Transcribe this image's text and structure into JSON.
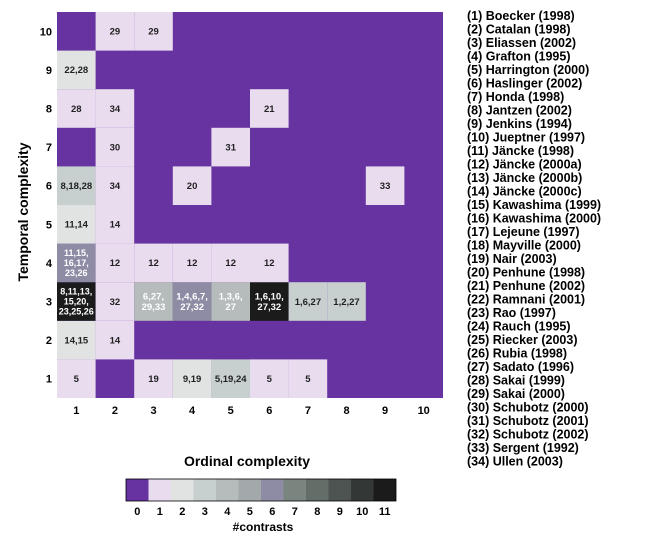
{
  "chart_data": {
    "type": "heatmap",
    "title": "",
    "xlabel": "Ordinal complexity",
    "ylabel": "Temporal complexity",
    "x_categories": [
      "1",
      "2",
      "3",
      "4",
      "5",
      "6",
      "7",
      "8",
      "9",
      "10"
    ],
    "y_categories": [
      "1",
      "2",
      "3",
      "4",
      "5",
      "6",
      "7",
      "8",
      "9",
      "10"
    ],
    "colorbar": {
      "label": "#contrasts",
      "ticks": [
        "0",
        "1",
        "2",
        "3",
        "4",
        "5",
        "6",
        "7",
        "8",
        "9",
        "10",
        "11"
      ],
      "colors": [
        "#6633a0",
        "#e9dcef",
        "#e0e3e2",
        "#c8cfcf",
        "#b6bcbc",
        "#a3a8aa",
        "#8e8ba4",
        "#7b8580",
        "#646e69",
        "#4d5451",
        "#333735",
        "#1c1b1c"
      ]
    },
    "cells": [
      {
        "x": 1,
        "y": 1,
        "count": 1,
        "label": "5"
      },
      {
        "x": 3,
        "y": 1,
        "count": 1,
        "label": "19"
      },
      {
        "x": 4,
        "y": 1,
        "count": 2,
        "label": "9,19"
      },
      {
        "x": 5,
        "y": 1,
        "count": 3,
        "label": "5,19,24"
      },
      {
        "x": 6,
        "y": 1,
        "count": 1,
        "label": "5"
      },
      {
        "x": 7,
        "y": 1,
        "count": 1,
        "label": "5"
      },
      {
        "x": 1,
        "y": 2,
        "count": 2,
        "label": "14,15"
      },
      {
        "x": 2,
        "y": 2,
        "count": 1,
        "label": "14"
      },
      {
        "x": 1,
        "y": 3,
        "count": 11,
        "label": "8,11,13,15,20,23,25,26"
      },
      {
        "x": 2,
        "y": 3,
        "count": 1,
        "label": "32"
      },
      {
        "x": 3,
        "y": 3,
        "count": 4,
        "label": "6,27,29,33"
      },
      {
        "x": 4,
        "y": 3,
        "count": 6,
        "label": "1,4,6,7,27,32"
      },
      {
        "x": 5,
        "y": 3,
        "count": 4,
        "label": "1,3,6,27"
      },
      {
        "x": 6,
        "y": 3,
        "count": 11,
        "label": "1,6,10,27,32"
      },
      {
        "x": 7,
        "y": 3,
        "count": 3,
        "label": "1,6,27"
      },
      {
        "x": 8,
        "y": 3,
        "count": 3,
        "label": "1,2,27"
      },
      {
        "x": 1,
        "y": 4,
        "count": 6,
        "label": "11,15,16,17,23,26"
      },
      {
        "x": 2,
        "y": 4,
        "count": 1,
        "label": "12"
      },
      {
        "x": 3,
        "y": 4,
        "count": 1,
        "label": "12"
      },
      {
        "x": 4,
        "y": 4,
        "count": 1,
        "label": "12"
      },
      {
        "x": 5,
        "y": 4,
        "count": 1,
        "label": "12"
      },
      {
        "x": 6,
        "y": 4,
        "count": 1,
        "label": "12"
      },
      {
        "x": 1,
        "y": 5,
        "count": 2,
        "label": "11,14"
      },
      {
        "x": 2,
        "y": 5,
        "count": 1,
        "label": "14"
      },
      {
        "x": 1,
        "y": 6,
        "count": 3,
        "label": "8,18,28"
      },
      {
        "x": 2,
        "y": 6,
        "count": 1,
        "label": "34"
      },
      {
        "x": 4,
        "y": 6,
        "count": 1,
        "label": "20"
      },
      {
        "x": 9,
        "y": 6,
        "count": 1,
        "label": "33"
      },
      {
        "x": 2,
        "y": 7,
        "count": 1,
        "label": "30"
      },
      {
        "x": 5,
        "y": 7,
        "count": 1,
        "label": "31"
      },
      {
        "x": 1,
        "y": 8,
        "count": 1,
        "label": "28"
      },
      {
        "x": 2,
        "y": 8,
        "count": 1,
        "label": "34"
      },
      {
        "x": 6,
        "y": 8,
        "count": 1,
        "label": "21"
      },
      {
        "x": 1,
        "y": 9,
        "count": 2,
        "label": "22,28"
      },
      {
        "x": 2,
        "y": 10,
        "count": 1,
        "label": "29"
      },
      {
        "x": 3,
        "y": 10,
        "count": 1,
        "label": "29"
      }
    ],
    "references": [
      "(1) Boecker (1998)",
      "(2) Catalan (1998)",
      "(3) Eliassen (2002)",
      "(4) Grafton (1995)",
      "(5) Harrington (2000)",
      "(6) Haslinger (2002)",
      "(7) Honda (1998)",
      "(8) Jantzen (2002)",
      "(9) Jenkins (1994)",
      "(10) Jueptner (1997)",
      "(11) Jäncke (1998)",
      "(12) Jäncke (2000a)",
      "(13) Jäncke (2000b)",
      "(14) Jäncke (2000c)",
      "(15) Kawashima (1999)",
      "(16) Kawashima (2000)",
      "(17) Lejeune (1997)",
      "(18) Mayville (2000)",
      "(19) Nair (2003)",
      "(20) Penhune  (1998)",
      "(21) Penhune (2002)",
      "(22) Ramnani (2001)",
      "(23) Rao (1997)",
      "(24) Rauch (1995)",
      "(25) Riecker (2003)",
      "(26) Rubia (1998)",
      "(27) Sadato (1996)",
      "(28) Sakai (1999)",
      "(29) Sakai (2000)",
      "(30) Schubotz (2000)",
      "(31) Schubotz (2001)",
      "(32) Schubotz (2002)",
      "(33) Sergent (1992)",
      "(34) Ullen (2003)"
    ]
  }
}
